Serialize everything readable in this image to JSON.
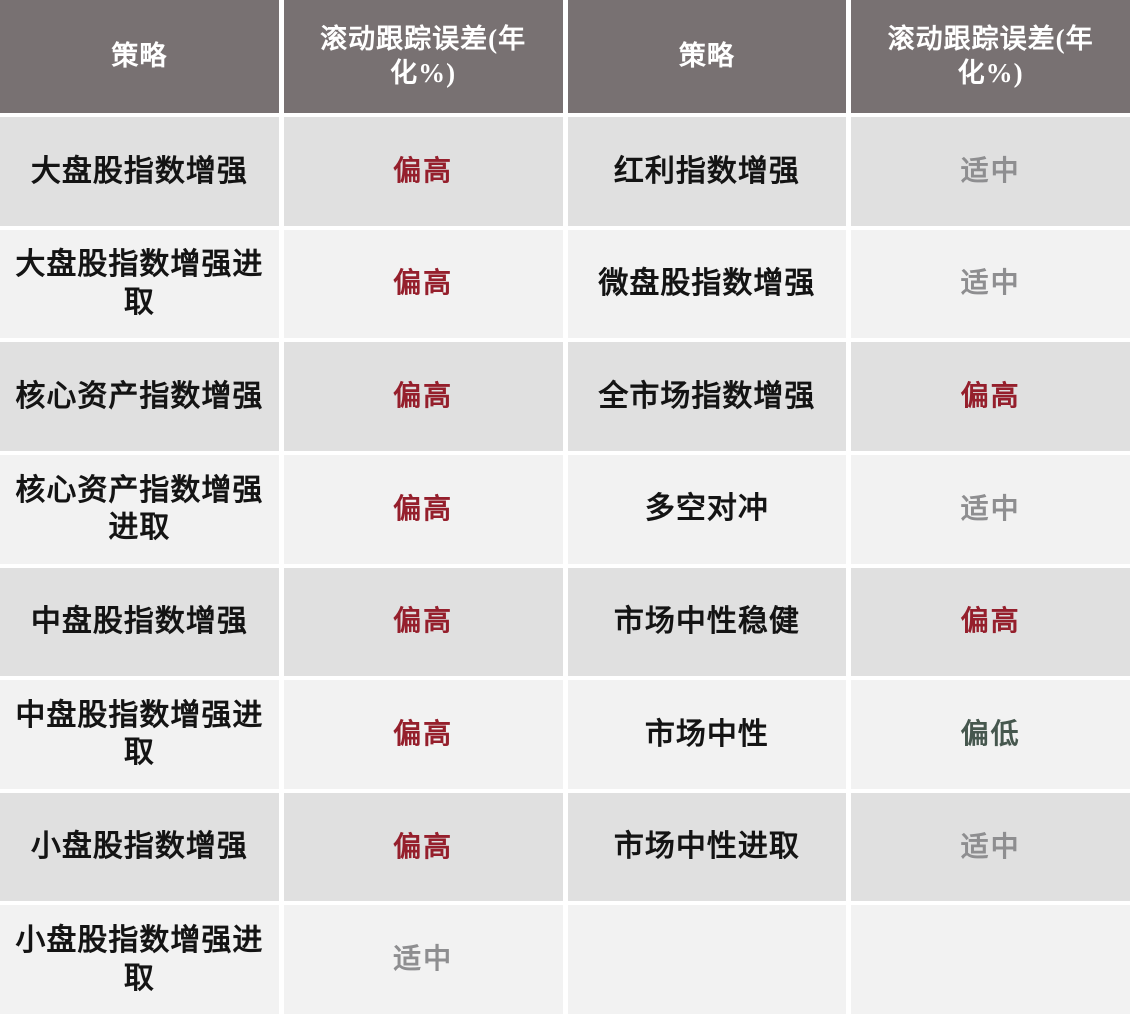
{
  "colors": {
    "header_bg": "#787172",
    "row_dark": "#e0e0e0",
    "row_light": "#f2f2f2",
    "gap": "#ffffff",
    "text": "#141414",
    "high": "#951f2c",
    "medium": "#8e8e90",
    "low": "#46574e"
  },
  "table": {
    "header": {
      "strategy_label": "策略",
      "error_label": "滚动跟踪误差(年化%)"
    },
    "rows": [
      {
        "left": {
          "strategy": "大盘股指数增强",
          "value": "偏高",
          "level": "high"
        },
        "right": {
          "strategy": "红利指数增强",
          "value": "适中",
          "level": "medium"
        }
      },
      {
        "left": {
          "strategy": "大盘股指数增强进取",
          "value": "偏高",
          "level": "high"
        },
        "right": {
          "strategy": "微盘股指数增强",
          "value": "适中",
          "level": "medium"
        }
      },
      {
        "left": {
          "strategy": "核心资产指数增强",
          "value": "偏高",
          "level": "high"
        },
        "right": {
          "strategy": "全市场指数增强",
          "value": "偏高",
          "level": "high"
        }
      },
      {
        "left": {
          "strategy": "核心资产指数增强进取",
          "value": "偏高",
          "level": "high"
        },
        "right": {
          "strategy": "多空对冲",
          "value": "适中",
          "level": "medium"
        }
      },
      {
        "left": {
          "strategy": "中盘股指数增强",
          "value": "偏高",
          "level": "high"
        },
        "right": {
          "strategy": "市场中性稳健",
          "value": "偏高",
          "level": "high"
        }
      },
      {
        "left": {
          "strategy": "中盘股指数增强进取",
          "value": "偏高",
          "level": "high"
        },
        "right": {
          "strategy": "市场中性",
          "value": "偏低",
          "level": "low"
        }
      },
      {
        "left": {
          "strategy": "小盘股指数增强",
          "value": "偏高",
          "level": "high"
        },
        "right": {
          "strategy": "市场中性进取",
          "value": "适中",
          "level": "medium"
        }
      },
      {
        "left": {
          "strategy": "小盘股指数增强进取",
          "value": "适中",
          "level": "medium"
        },
        "right": {
          "strategy": "",
          "value": "",
          "level": ""
        }
      }
    ]
  },
  "chart_data": {
    "type": "table",
    "title": "",
    "columns": [
      "策略",
      "滚动跟踪误差(年化%)",
      "策略",
      "滚动跟踪误差(年化%)"
    ],
    "rows": [
      [
        "大盘股指数增强",
        "偏高",
        "红利指数增强",
        "适中"
      ],
      [
        "大盘股指数增强进取",
        "偏高",
        "微盘股指数增强",
        "适中"
      ],
      [
        "核心资产指数增强",
        "偏高",
        "全市场指数增强",
        "偏高"
      ],
      [
        "核心资产指数增强进取",
        "偏高",
        "多空对冲",
        "适中"
      ],
      [
        "中盘股指数增强",
        "偏高",
        "市场中性稳健",
        "偏高"
      ],
      [
        "中盘股指数增强进取",
        "偏高",
        "市场中性",
        "偏低"
      ],
      [
        "小盘股指数增强",
        "偏高",
        "市场中性进取",
        "适中"
      ],
      [
        "小盘股指数增强进取",
        "适中",
        "",
        ""
      ]
    ],
    "value_legend": {
      "偏高": "high (dark red)",
      "适中": "medium (gray)",
      "偏低": "low (dark green)"
    }
  }
}
